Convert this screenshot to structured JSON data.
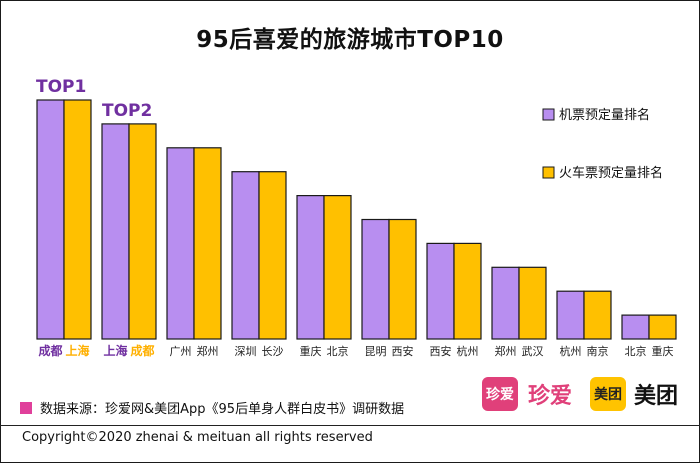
{
  "chart_data": {
    "type": "bar",
    "title": "95后喜爱的旅游城市TOP10",
    "categories": [
      {
        "flight_city": "成都",
        "train_city": "上海",
        "highlight": true,
        "tag": "TOP1"
      },
      {
        "flight_city": "上海",
        "train_city": "成都",
        "highlight": true,
        "tag": "TOP2"
      },
      {
        "flight_city": "广州",
        "train_city": "郑州",
        "highlight": false,
        "tag": ""
      },
      {
        "flight_city": "深圳",
        "train_city": "长沙",
        "highlight": false,
        "tag": ""
      },
      {
        "flight_city": "重庆",
        "train_city": "北京",
        "highlight": false,
        "tag": ""
      },
      {
        "flight_city": "昆明",
        "train_city": "西安",
        "highlight": false,
        "tag": ""
      },
      {
        "flight_city": "西安",
        "train_city": "杭州",
        "highlight": false,
        "tag": ""
      },
      {
        "flight_city": "郑州",
        "train_city": "武汉",
        "highlight": false,
        "tag": ""
      },
      {
        "flight_city": "杭州",
        "train_city": "南京",
        "highlight": false,
        "tag": ""
      },
      {
        "flight_city": "北京",
        "train_city": "重庆",
        "highlight": false,
        "tag": ""
      }
    ],
    "series": [
      {
        "name": "机票预定量排名",
        "color": "#b88ef0",
        "ranks": [
          1,
          2,
          3,
          4,
          5,
          6,
          7,
          8,
          9,
          10
        ]
      },
      {
        "name": "火车票预定量排名",
        "color": "#ffc000",
        "ranks": [
          1,
          2,
          3,
          4,
          5,
          6,
          7,
          8,
          9,
          10
        ]
      }
    ],
    "ylim": [
      0,
      100
    ],
    "bar_heights": [
      100,
      90,
      80,
      70,
      60,
      50,
      40,
      30,
      20,
      10
    ],
    "colors": {
      "highlight_purple": "#7030a0",
      "highlight_orange": "#ffb000",
      "bar_stroke": "#1a1a1a"
    }
  },
  "footer": {
    "source_text": "数据来源：珍爱网&美团App《95后单身人群白皮书》调研数据",
    "source_marker_color": "#e0409b",
    "copyright": "Copyright©2020 zhenai & meituan all rights reserved"
  },
  "logos": {
    "zhenai_badge": "珍爱",
    "zhenai_text": "珍爱",
    "meituan_badge": "美团",
    "meituan_text": "美团"
  }
}
